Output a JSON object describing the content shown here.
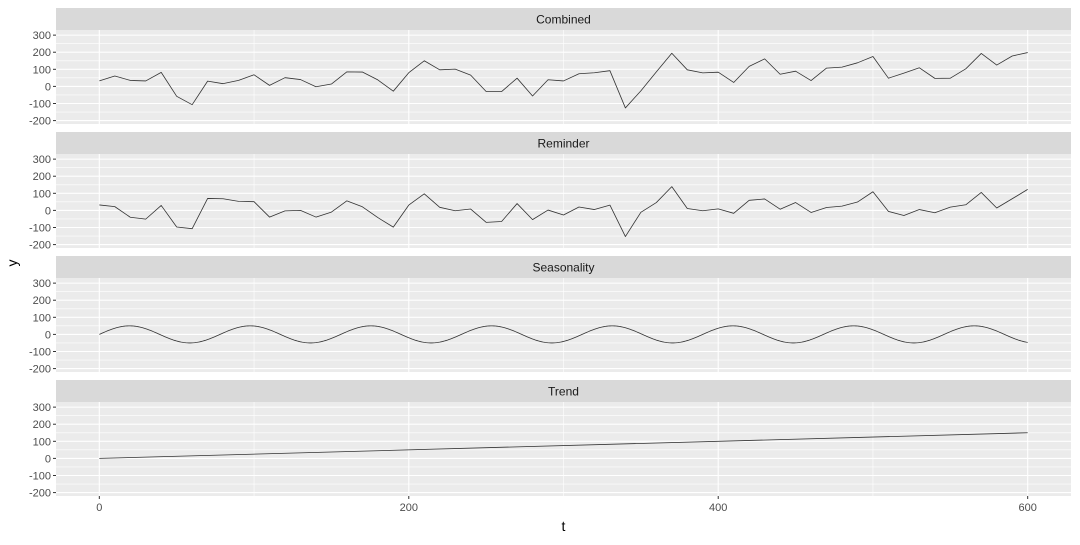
{
  "chart_data": {
    "type": "line",
    "xlabel": "t",
    "ylabel": "y",
    "xlim": [
      -28,
      628
    ],
    "ylim": [
      -220,
      330
    ],
    "x_ticks": [
      0,
      200,
      400,
      600
    ],
    "x_tick_labels": [
      "0",
      "200",
      "400",
      "600"
    ],
    "x_minor_ticks": [
      100,
      300,
      500
    ],
    "y_ticks": [
      -200,
      -100,
      0,
      100,
      200,
      300
    ],
    "y_tick_labels": [
      "-200",
      "-100",
      "0",
      "100",
      "200",
      "300"
    ],
    "y_minor_ticks": [
      -150,
      -50,
      50,
      150,
      250
    ],
    "grid": true,
    "panel_background": "#ebebeb",
    "strip_background": "#d9d9d9",
    "grid_color": "#ffffff",
    "line_color": "#333333",
    "panels": [
      {
        "name": "Combined"
      },
      {
        "name": "Reminder"
      },
      {
        "name": "Seasonality"
      },
      {
        "name": "Trend"
      }
    ],
    "series": [
      {
        "name": "Combined",
        "x_start": 0,
        "x_step": 10,
        "values": [
          32,
          61,
          35,
          32,
          82,
          -58,
          -107,
          31,
          16,
          35,
          68,
          6,
          51,
          40,
          -2,
          14,
          85,
          84,
          38,
          -28,
          80,
          150,
          97,
          101,
          66,
          -30,
          -30,
          48,
          -56,
          39,
          32,
          74,
          80,
          92,
          -126,
          -26,
          85,
          194,
          97,
          79,
          83,
          23,
          117,
          161,
          71,
          89,
          34,
          107,
          113,
          138,
          175,
          48,
          78,
          109,
          47,
          48,
          103,
          193,
          125,
          178,
          198
        ]
      },
      {
        "name": "Reminder",
        "x_start": 0,
        "x_step": 10,
        "values": [
          32,
          22,
          -40,
          -51,
          29,
          -97,
          -107,
          70,
          68,
          53,
          51,
          -39,
          -3,
          0,
          -39,
          -10,
          56,
          21,
          -42,
          -98,
          31,
          97,
          18,
          -2,
          8,
          -70,
          -65,
          40,
          -54,
          2,
          -27,
          20,
          5,
          31,
          -153,
          -11,
          46,
          139,
          11,
          -2,
          9,
          -17,
          59,
          67,
          7,
          46,
          -12,
          17,
          25,
          49,
          109,
          -6,
          -30,
          5,
          -14,
          19,
          33,
          105,
          14,
          68,
          123
        ]
      },
      {
        "name": "Seasonality",
        "function": "50*sin(2*pi*t/78)",
        "amplitude": 50,
        "period": 78,
        "x_start": 0,
        "x_end": 600
      },
      {
        "name": "Trend",
        "x": [
          0,
          600
        ],
        "values": [
          0,
          150
        ]
      }
    ]
  }
}
